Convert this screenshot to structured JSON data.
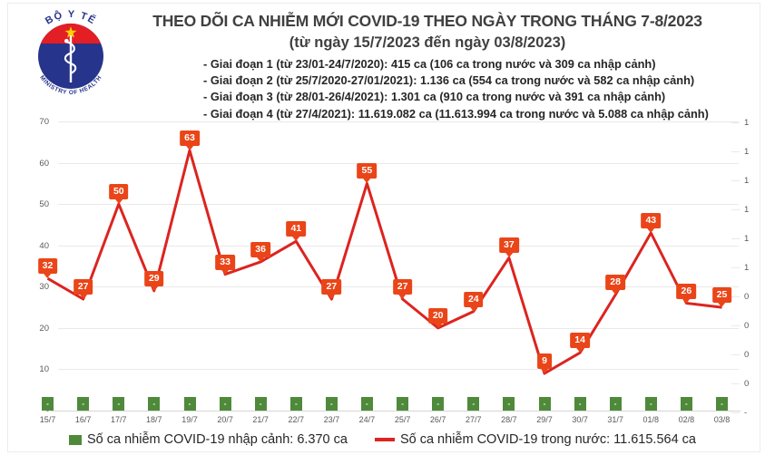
{
  "header": {
    "title": "THEO DÕI CA NHIỄM MỚI COVID-19 THEO NGÀY TRONG THÁNG 7-8/2023",
    "subtitle": "(từ ngày 15/7/2023 đến ngày 03/8/2023)",
    "phases": [
      "- Giai đoạn 1 (từ 23/01-24/7/2020): 415 ca (106 ca trong nước và 309 ca nhập cảnh)",
      "- Giai đoạn 2 (từ 25/7/2020-27/01/2021): 1.136 ca (554 ca trong nước và 582 ca nhập cảnh)",
      "- Giai đoạn 3 (từ 28/01-26/4/2021): 1.301 ca (910 ca trong nước và 391 ca nhập cảnh)",
      "- Giai đoạn 4 (từ 27/4/2021): 11.619.082 ca (11.613.994 ca trong nước và 5.088 ca nhập cảnh)"
    ]
  },
  "logo": {
    "top_text": "BỘ Y TẾ",
    "bottom_text": "MINISTRY OF HEALTH",
    "blue": "#27348b",
    "red": "#e31e24",
    "star_yellow": "#ffd100"
  },
  "colors": {
    "line": "#dc2420",
    "label_bg": "#ea4518",
    "bar_green": "#4f8a3b",
    "grid": "#e9e9e9",
    "axis_text": "#595959"
  },
  "chart_data": {
    "type": "line",
    "title": "Ca nhiễm mới COVID-19 theo ngày 15/7/2023 - 03/8/2023",
    "categories": [
      "15/7",
      "16/7",
      "17/7",
      "18/7",
      "19/7",
      "20/7",
      "21/7",
      "22/7",
      "23/7",
      "24/7",
      "25/7",
      "26/7",
      "27/7",
      "28/7",
      "29/7",
      "30/7",
      "31/7",
      "01/8",
      "02/8",
      "03/8"
    ],
    "series": [
      {
        "name": "Số ca nhiễm COVID-19 nhập cảnh",
        "type": "bar",
        "values": [
          0,
          0,
          0,
          0,
          0,
          0,
          0,
          0,
          0,
          0,
          0,
          0,
          0,
          0,
          0,
          0,
          0,
          0,
          0,
          0
        ],
        "display_labels": [
          "-",
          "-",
          "-",
          "-",
          "-",
          "-",
          "-",
          "-",
          "-",
          "-",
          "-",
          "-",
          "-",
          "-",
          "-",
          "-",
          "-",
          "-",
          "-",
          "-"
        ]
      },
      {
        "name": "Số ca nhiễm COVID-19 trong nước",
        "type": "line",
        "values": [
          32,
          27,
          50,
          29,
          63,
          33,
          36,
          41,
          27,
          55,
          27,
          20,
          24,
          37,
          9,
          14,
          28,
          43,
          26,
          25
        ]
      }
    ],
    "left_axis": {
      "min": 0,
      "max": 70,
      "ticks": [
        "70",
        "60",
        "50",
        "40",
        "30",
        "20",
        "10",
        "-"
      ]
    },
    "right_axis": {
      "min": 0,
      "max": 1,
      "ticks": [
        "1",
        "1",
        "1",
        "1",
        "1",
        "1",
        "0",
        "0",
        "0",
        "0",
        "-"
      ]
    },
    "grid": "horizontal",
    "legend_position": "bottom",
    "legend": [
      {
        "swatch": "bar",
        "label": "Số ca nhiễm COVID-19 nhập cảnh: 6.370 ca"
      },
      {
        "swatch": "line",
        "label": "Số ca nhiễm COVID-19 trong nước: 11.615.564 ca"
      }
    ]
  }
}
